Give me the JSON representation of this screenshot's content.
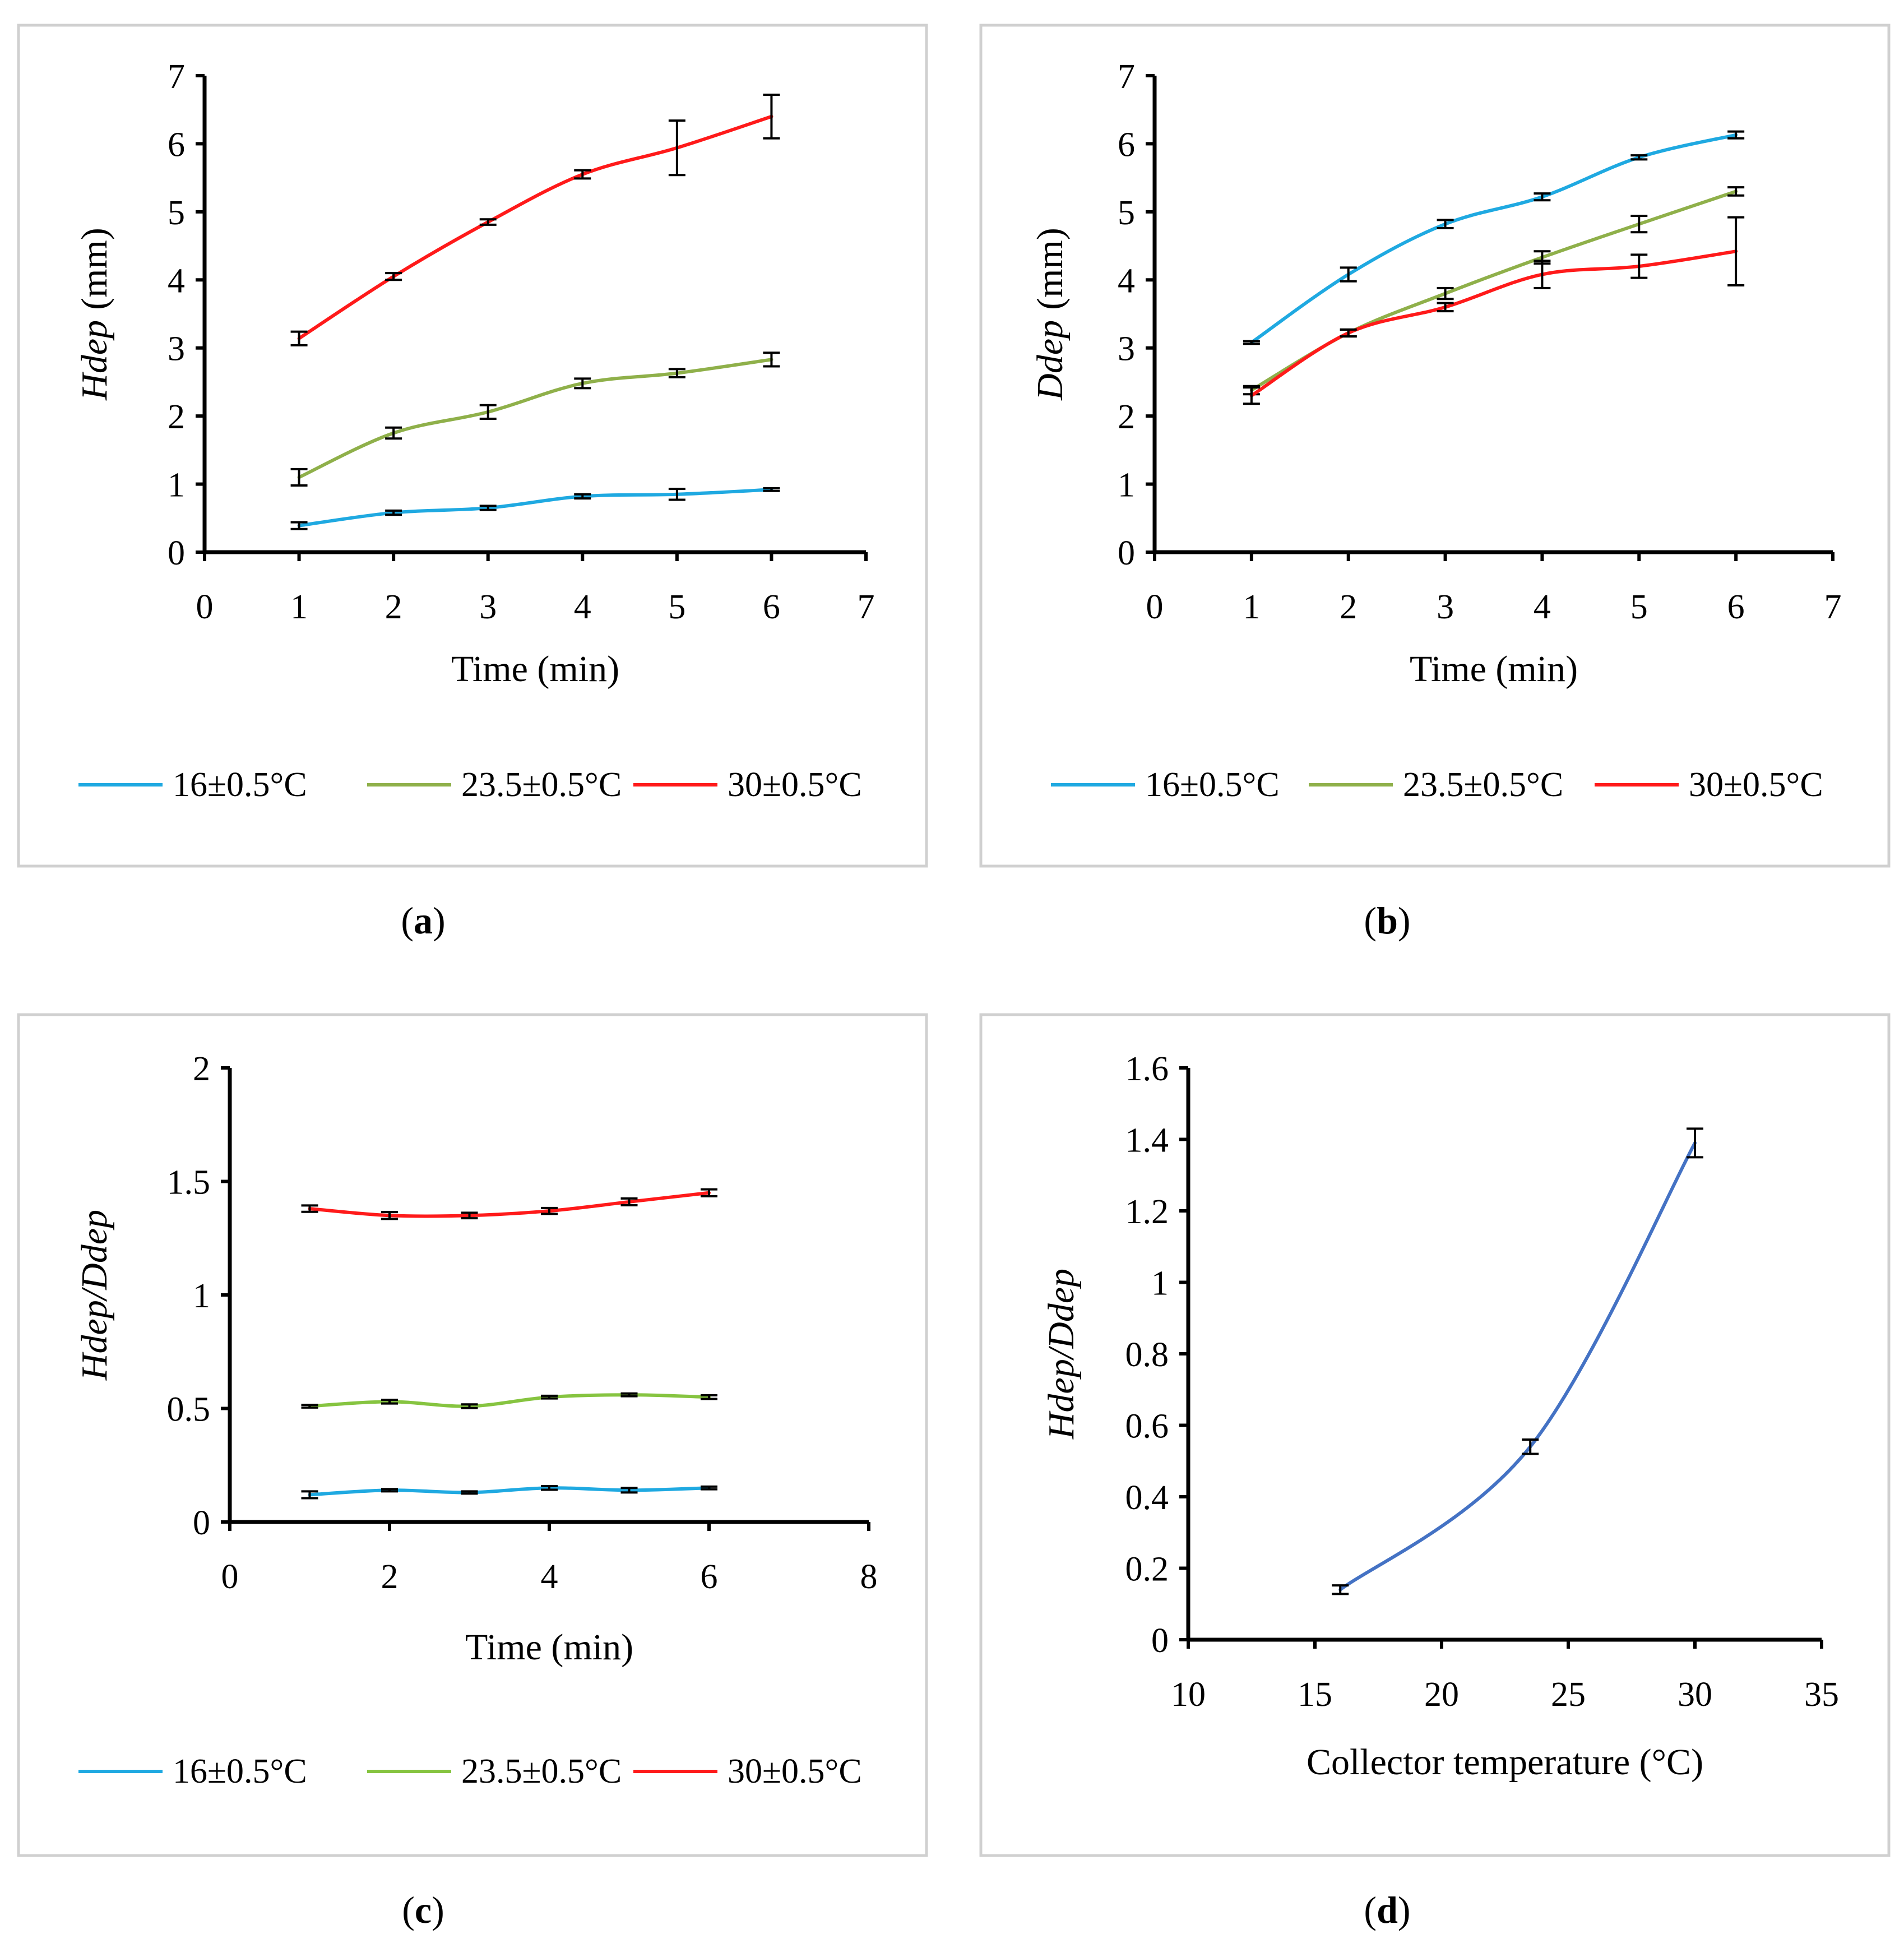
{
  "colors": {
    "t16": "#1fa9e1",
    "t23": "#8fb04a",
    "t23c": "#86c440",
    "t30": "#ff1a1a",
    "d": "#4472c4",
    "axis": "#000000",
    "errorbar": "#000000"
  },
  "chart_data": [
    {
      "id": "a",
      "type": "line",
      "caption": "(a)",
      "caption_letter": "a",
      "xlabel": "Time (min)",
      "ylabel_italic": "Hdep",
      "ylabel_unit": "(mm)",
      "xlim": [
        0,
        7
      ],
      "ylim": [
        0,
        7
      ],
      "xticks": [
        "0",
        "1",
        "2",
        "3",
        "4",
        "5",
        "6",
        "7"
      ],
      "yticks": [
        "0",
        "1",
        "2",
        "3",
        "4",
        "5",
        "6",
        "7"
      ],
      "x": [
        1,
        2,
        3,
        4,
        5,
        6
      ],
      "series": [
        {
          "name": "16±0.5°C",
          "color_key": "t16",
          "values": [
            0.39,
            0.58,
            0.65,
            0.82,
            0.85,
            0.92
          ],
          "errors": [
            0.05,
            0.03,
            0.03,
            0.03,
            0.08,
            0.02
          ]
        },
        {
          "name": "23.5±0.5°C",
          "color_key": "t23",
          "values": [
            1.1,
            1.75,
            2.06,
            2.48,
            2.63,
            2.83
          ],
          "errors": [
            0.12,
            0.08,
            0.1,
            0.07,
            0.06,
            0.1
          ]
        },
        {
          "name": "30±0.5°C",
          "color_key": "t30",
          "values": [
            3.14,
            4.05,
            4.85,
            5.55,
            5.94,
            6.4
          ],
          "errors": [
            0.1,
            0.05,
            0.04,
            0.06,
            0.4,
            0.32
          ]
        }
      ]
    },
    {
      "id": "b",
      "type": "line",
      "caption": "(b)",
      "caption_letter": "b",
      "xlabel": "Time (min)",
      "ylabel_italic": "Ddep",
      "ylabel_unit": "(mm)",
      "xlim": [
        0,
        7
      ],
      "ylim": [
        0,
        7
      ],
      "xticks": [
        "0",
        "1",
        "2",
        "3",
        "4",
        "5",
        "6",
        "7"
      ],
      "yticks": [
        "0",
        "1",
        "2",
        "3",
        "4",
        "5",
        "6",
        "7"
      ],
      "x": [
        1,
        2,
        3,
        4,
        5,
        6
      ],
      "series": [
        {
          "name": "16±0.5°C",
          "color_key": "t16",
          "values": [
            3.08,
            4.08,
            4.82,
            5.22,
            5.8,
            6.13
          ],
          "errors": [
            0.02,
            0.1,
            0.06,
            0.05,
            0.03,
            0.05
          ]
        },
        {
          "name": "23.5±0.5°C",
          "color_key": "t23",
          "values": [
            2.38,
            3.22,
            3.8,
            4.33,
            4.82,
            5.3
          ],
          "errors": [
            0.06,
            0.05,
            0.08,
            0.09,
            0.12,
            0.06
          ]
        },
        {
          "name": "30±0.5°C",
          "color_key": "t30",
          "values": [
            2.3,
            3.22,
            3.6,
            4.08,
            4.2,
            4.42
          ],
          "errors": [
            0.12,
            0.05,
            0.06,
            0.2,
            0.17,
            0.5
          ]
        }
      ]
    },
    {
      "id": "c",
      "type": "line",
      "caption": "(c)",
      "caption_letter": "c",
      "xlabel": "Time (min)",
      "ylabel_italic": "Hdep/Ddep",
      "ylabel_unit": "",
      "xlim": [
        0,
        8
      ],
      "ylim": [
        0,
        2
      ],
      "xticks": [
        "0",
        "2",
        "4",
        "6",
        "8"
      ],
      "yticks": [
        "0",
        "0.5",
        "1",
        "1.5",
        "2"
      ],
      "x": [
        1,
        2,
        3,
        4,
        5,
        6
      ],
      "series": [
        {
          "name": "16±0.5°C",
          "color_key": "t16",
          "values": [
            0.12,
            0.14,
            0.13,
            0.15,
            0.14,
            0.15
          ],
          "errors": [
            0.015,
            0.005,
            0.005,
            0.008,
            0.01,
            0.006
          ]
        },
        {
          "name": "23.5±0.5°C",
          "color_key": "t23c",
          "values": [
            0.51,
            0.53,
            0.51,
            0.55,
            0.56,
            0.55
          ],
          "errors": [
            0.006,
            0.008,
            0.008,
            0.006,
            0.006,
            0.008
          ]
        },
        {
          "name": "30±0.5°C",
          "color_key": "t30",
          "values": [
            1.38,
            1.35,
            1.35,
            1.37,
            1.41,
            1.45
          ],
          "errors": [
            0.014,
            0.015,
            0.012,
            0.013,
            0.015,
            0.015
          ]
        }
      ]
    },
    {
      "id": "d",
      "type": "line",
      "caption": "(d)",
      "caption_letter": "d",
      "xlabel": "Collector temperature (°C)",
      "ylabel_italic": "Hdep/Ddep",
      "ylabel_unit": "",
      "xlim": [
        10,
        35
      ],
      "ylim": [
        0,
        1.6
      ],
      "xticks": [
        "10",
        "15",
        "20",
        "25",
        "30",
        "35"
      ],
      "yticks": [
        "0",
        "0.2",
        "0.4",
        "0.6",
        "0.8",
        "1",
        "1.2",
        "1.4",
        "1.6"
      ],
      "x": [
        16,
        23.5,
        30
      ],
      "series": [
        {
          "name": "Hdep/Ddep",
          "color_key": "d",
          "values": [
            0.14,
            0.54,
            1.39
          ],
          "errors": [
            0.012,
            0.02,
            0.04
          ]
        }
      ]
    }
  ]
}
